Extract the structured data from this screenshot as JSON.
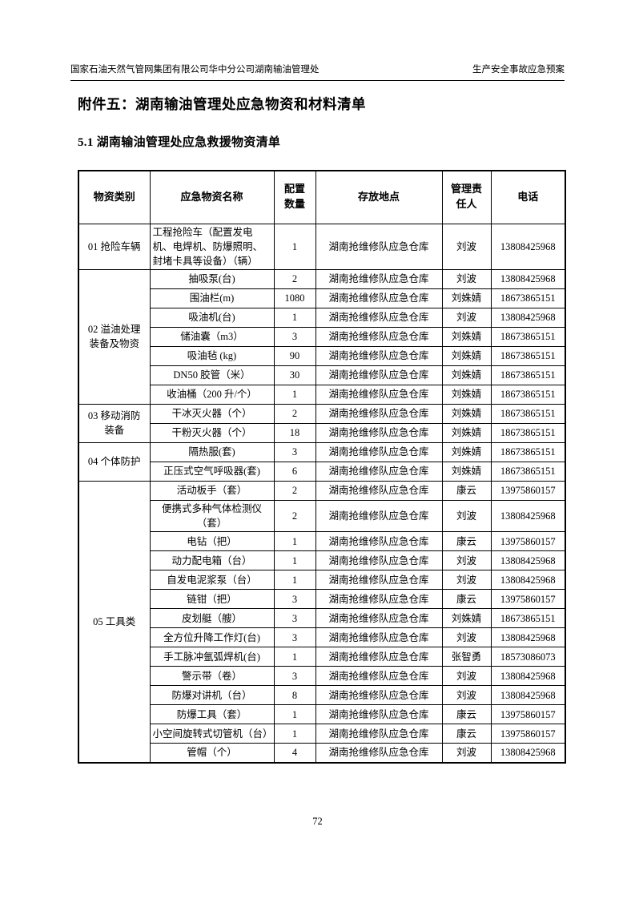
{
  "colors": {
    "ink": "#000000",
    "paper": "#ffffff"
  },
  "header": {
    "left": "国家石油天然气管网集团有限公司华中分公司湖南输油管理处",
    "right": "生产安全事故应急预案"
  },
  "titles": {
    "attachment": "附件五：湖南输油管理处应急物资和材料清单",
    "section": "5.1 湖南输油管理处应急救援物资清单"
  },
  "table": {
    "columns": [
      "物资类别",
      "应急物资名称",
      "配置\n数量",
      "存放地点",
      "管理责\n任人",
      "电话"
    ],
    "groups": [
      {
        "category": "01 抢险车辆",
        "items": [
          {
            "name": "工程抢险车（配置发电机、电焊机、防爆照明、封堵卡具等设备）（辆）",
            "qty": "1",
            "location": "湖南抢维修队应急仓库",
            "manager": "刘波",
            "phone": "13808425968",
            "align": "left"
          }
        ]
      },
      {
        "category": "02 溢油处理\n装备及物资",
        "items": [
          {
            "name": "抽吸泵(台)",
            "qty": "2",
            "location": "湖南抢维修队应急仓库",
            "manager": "刘波",
            "phone": "13808425968"
          },
          {
            "name": "围油栏(m)",
            "qty": "1080",
            "location": "湖南抢维修队应急仓库",
            "manager": "刘姝婧",
            "phone": "18673865151"
          },
          {
            "name": "吸油机(台)",
            "qty": "1",
            "location": "湖南抢维修队应急仓库",
            "manager": "刘波",
            "phone": "13808425968"
          },
          {
            "name": "储油囊（m3）",
            "qty": "3",
            "location": "湖南抢维修队应急仓库",
            "manager": "刘姝婧",
            "phone": "18673865151"
          },
          {
            "name": "吸油毡 (kg)",
            "qty": "90",
            "location": "湖南抢维修队应急仓库",
            "manager": "刘姝婧",
            "phone": "18673865151"
          },
          {
            "name": "DN50 胶管（米）",
            "qty": "30",
            "location": "湖南抢维修队应急仓库",
            "manager": "刘姝婧",
            "phone": "18673865151"
          },
          {
            "name": "收油桶（200 升/个）",
            "qty": "1",
            "location": "湖南抢维修队应急仓库",
            "manager": "刘姝婧",
            "phone": "18673865151"
          }
        ]
      },
      {
        "category": "03 移动消防\n装备",
        "items": [
          {
            "name": "干冰灭火器（个）",
            "qty": "2",
            "location": "湖南抢维修队应急仓库",
            "manager": "刘姝婧",
            "phone": "18673865151"
          },
          {
            "name": "干粉灭火器（个）",
            "qty": "18",
            "location": "湖南抢维修队应急仓库",
            "manager": "刘姝婧",
            "phone": "18673865151"
          }
        ]
      },
      {
        "category": "04 个体防护",
        "items": [
          {
            "name": "隔热服(套)",
            "qty": "3",
            "location": "湖南抢维修队应急仓库",
            "manager": "刘姝婧",
            "phone": "18673865151"
          },
          {
            "name": "正压式空气呼吸器(套)",
            "qty": "6",
            "location": "湖南抢维修队应急仓库",
            "manager": "刘姝婧",
            "phone": "18673865151"
          }
        ]
      },
      {
        "category": "05 工具类",
        "items": [
          {
            "name": "活动板手（套）",
            "qty": "2",
            "location": "湖南抢维修队应急仓库",
            "manager": "康云",
            "phone": "13975860157"
          },
          {
            "name": "便携式多种气体检测仪（套）",
            "qty": "2",
            "location": "湖南抢维修队应急仓库",
            "manager": "刘波",
            "phone": "13808425968"
          },
          {
            "name": "电钻（把）",
            "qty": "1",
            "location": "湖南抢维修队应急仓库",
            "manager": "康云",
            "phone": "13975860157"
          },
          {
            "name": "动力配电箱（台）",
            "qty": "1",
            "location": "湖南抢维修队应急仓库",
            "manager": "刘波",
            "phone": "13808425968"
          },
          {
            "name": "自发电泥浆泵（台）",
            "qty": "1",
            "location": "湖南抢维修队应急仓库",
            "manager": "刘波",
            "phone": "13808425968"
          },
          {
            "name": "链钳（把）",
            "qty": "3",
            "location": "湖南抢维修队应急仓库",
            "manager": "康云",
            "phone": "13975860157"
          },
          {
            "name": "皮划艇（艘）",
            "qty": "3",
            "location": "湖南抢维修队应急仓库",
            "manager": "刘姝婧",
            "phone": "18673865151"
          },
          {
            "name": "全方位升降工作灯(台)",
            "qty": "3",
            "location": "湖南抢维修队应急仓库",
            "manager": "刘波",
            "phone": "13808425968"
          },
          {
            "name": "手工脉冲氩弧焊机(台)",
            "qty": "1",
            "location": "湖南抢维修队应急仓库",
            "manager": "张智勇",
            "phone": "18573086073"
          },
          {
            "name": "警示带（卷）",
            "qty": "3",
            "location": "湖南抢维修队应急仓库",
            "manager": "刘波",
            "phone": "13808425968"
          },
          {
            "name": "防爆对讲机（台）",
            "qty": "8",
            "location": "湖南抢维修队应急仓库",
            "manager": "刘波",
            "phone": "13808425968"
          },
          {
            "name": "防爆工具（套）",
            "qty": "1",
            "location": "湖南抢维修队应急仓库",
            "manager": "康云",
            "phone": "13975860157"
          },
          {
            "name": "小空间旋转式切管机（台）",
            "qty": "1",
            "location": "湖南抢维修队应急仓库",
            "manager": "康云",
            "phone": "13975860157"
          },
          {
            "name": "管帽（个）",
            "qty": "4",
            "location": "湖南抢维修队应急仓库",
            "manager": "刘波",
            "phone": "13808425968"
          }
        ]
      }
    ]
  },
  "footer": {
    "page_number": "72"
  }
}
